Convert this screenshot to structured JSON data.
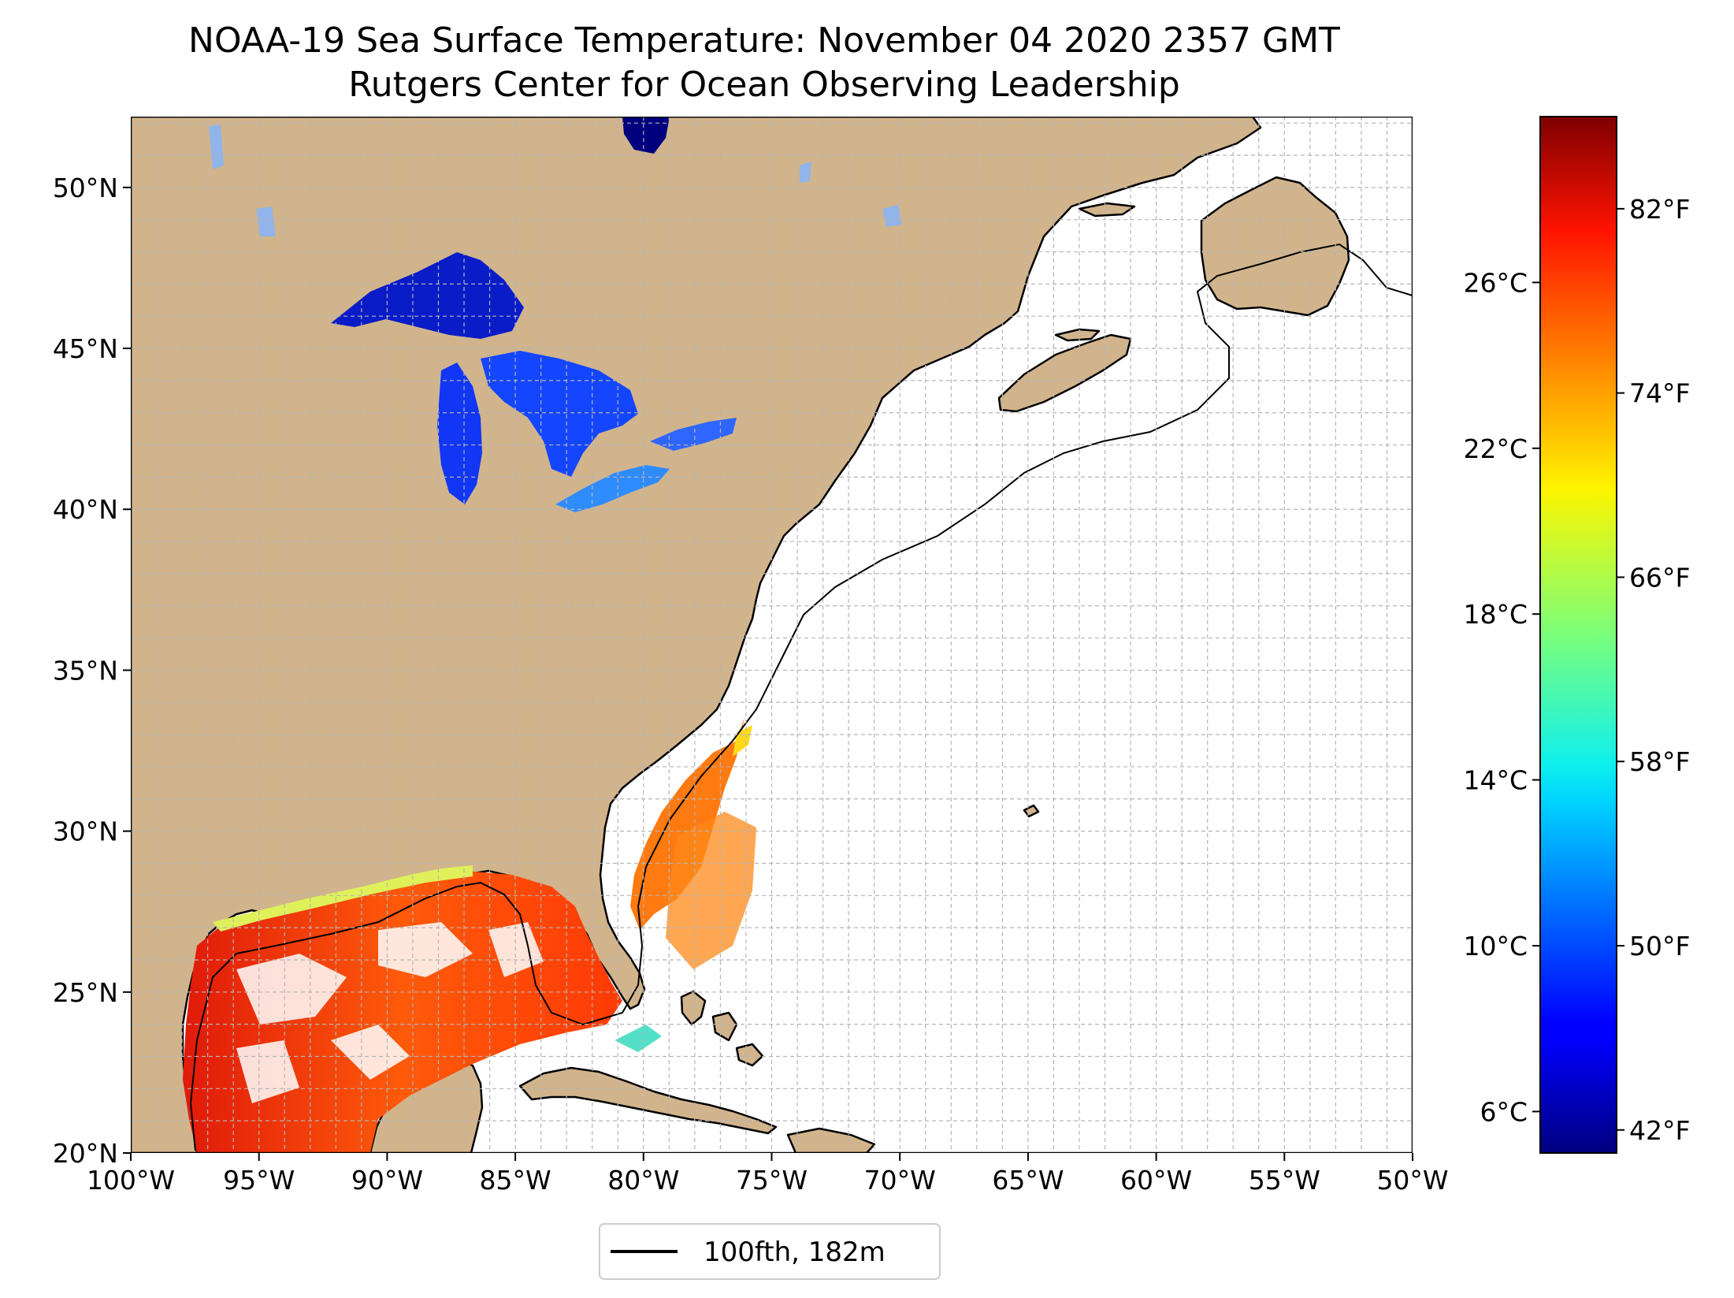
{
  "title": {
    "line1": "NOAA-19 Sea Surface Temperature: November 04 2020 2357 GMT",
    "line2": "Rutgers Center for Ocean Observing Leadership"
  },
  "map": {
    "lon_range": [
      -100,
      -50
    ],
    "lat_range": [
      20,
      52.2
    ],
    "land_color": "#d2b48c",
    "ocean_nodata_color": "#ffffff",
    "gridlines": true,
    "x_ticks": [
      "100°W",
      "95°W",
      "90°W",
      "85°W",
      "80°W",
      "75°W",
      "70°W",
      "65°W",
      "60°W",
      "55°W",
      "50°W"
    ],
    "x_tick_values": [
      -100,
      -95,
      -90,
      -85,
      -80,
      -75,
      -70,
      -65,
      -60,
      -55,
      -50
    ],
    "y_ticks": [
      "20°N",
      "25°N",
      "30°N",
      "35°N",
      "40°N",
      "45°N",
      "50°N"
    ],
    "y_tick_values": [
      20,
      25,
      30,
      35,
      40,
      45,
      50
    ]
  },
  "colorbar": {
    "colormap": "jet",
    "celsius_range": [
      5,
      30
    ],
    "celsius_ticks": [
      "6°C",
      "10°C",
      "14°C",
      "18°C",
      "22°C",
      "26°C"
    ],
    "celsius_tick_values": [
      6,
      10,
      14,
      18,
      22,
      26
    ],
    "fahrenheit_ticks": [
      "42°F",
      "50°F",
      "58°F",
      "66°F",
      "74°F",
      "82°F"
    ],
    "fahrenheit_tick_values": [
      42,
      50,
      58,
      66,
      74,
      82
    ]
  },
  "legend": {
    "entry_label": "100fth, 182m",
    "line_color": "#000000"
  }
}
